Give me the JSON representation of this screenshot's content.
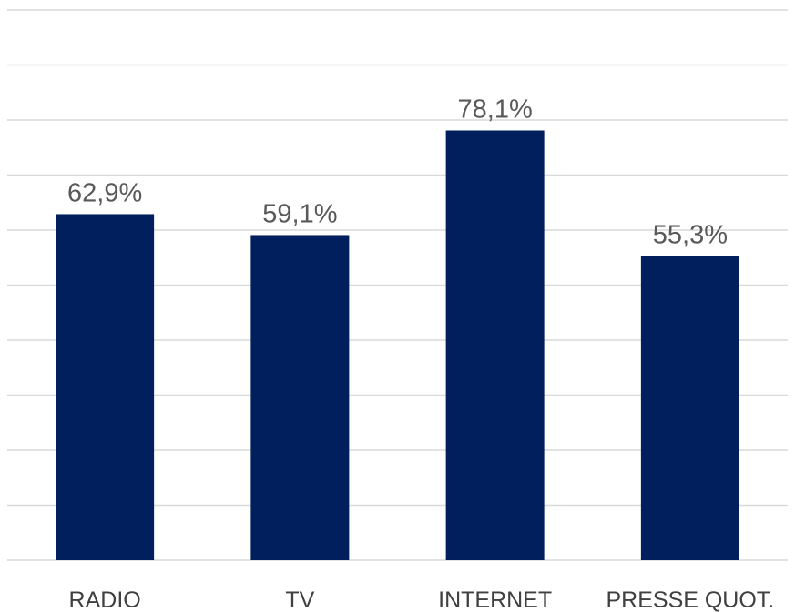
{
  "chart_data": {
    "type": "bar",
    "categories": [
      "RADIO",
      "TV",
      "INTERNET",
      "PRESSE QUOT."
    ],
    "values": [
      62.9,
      59.1,
      78.1,
      55.3
    ],
    "data_labels": [
      "62,9%",
      "59,1%",
      "78,1%",
      "55,3%"
    ],
    "title": "",
    "xlabel": "",
    "ylabel": "",
    "ylim": [
      0,
      100
    ],
    "grid": true,
    "legend": "none",
    "colors": {
      "bar": "#001f5c",
      "grid": "#d9d9d9"
    }
  }
}
